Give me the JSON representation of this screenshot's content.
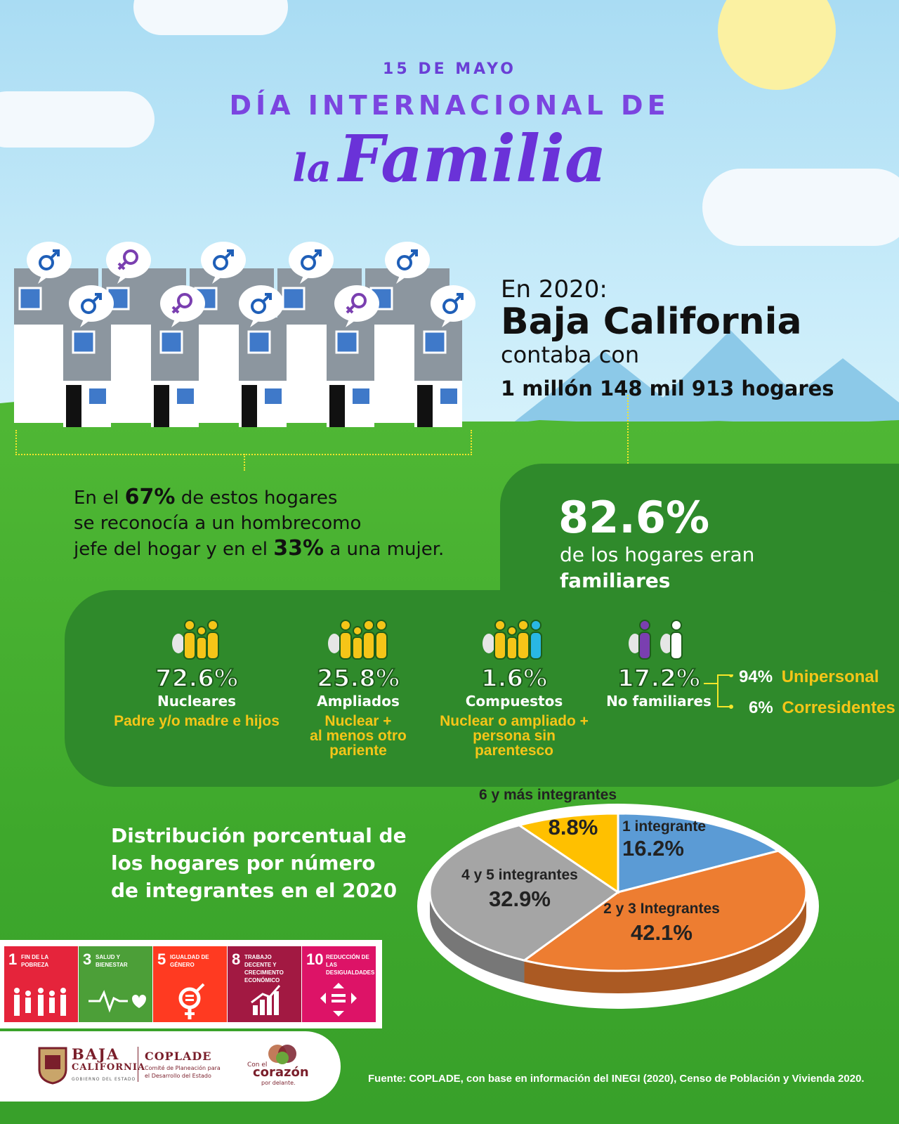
{
  "header": {
    "date": "15 DE MAYO",
    "title_line1": "DÍA INTERNACIONAL DE",
    "title_la": "la",
    "title_familia": "Familia"
  },
  "intro": {
    "year_label": "En 2020:",
    "state": "Baja California",
    "had": "contaba con",
    "households": "1 millón 148 mil 913 hogares"
  },
  "headship": {
    "pre": "En el",
    "men_pct": "67%",
    "mid1": "de estos hogares",
    "line2": "se reconocía a un hombrecomo",
    "line3_pre": "jefe del hogar y en el",
    "women_pct": "33%",
    "line3_post": "a una mujer."
  },
  "family_share": {
    "pct": "82.6%",
    "line1": "de los hogares eran",
    "line2": "familiares"
  },
  "types": [
    {
      "pct": "72.6%",
      "name": "Nucleares",
      "desc": [
        "Padre y/o madre e hijos"
      ]
    },
    {
      "pct": "25.8%",
      "name": "Ampliados",
      "desc": [
        "Nuclear +",
        "al menos otro",
        "pariente"
      ]
    },
    {
      "pct": "1.6%",
      "name": "Compuestos",
      "desc": [
        "Nuclear o ampliado +",
        "persona sin",
        "parentesco"
      ]
    },
    {
      "pct": "17.2%",
      "name": "No familiares",
      "desc": []
    }
  ],
  "non_family_breakdown": [
    {
      "pct": "94%",
      "label": "Unipersonal"
    },
    {
      "pct": "6%",
      "label": "Corresidentes"
    }
  ],
  "distribution_title": [
    "Distribución porcentual de",
    "los hogares por número",
    "de integrantes en el 2020"
  ],
  "chart_data": {
    "type": "pie",
    "title": "Distribución porcentual de los hogares por número de integrantes en el 2020",
    "categories": [
      "1 integrante",
      "2 y 3 Integrantes",
      "4 y 5 integrantes",
      "6 y más integrantes"
    ],
    "values": [
      16.2,
      42.1,
      32.9,
      8.8
    ],
    "value_labels": [
      "16.2%",
      "42.1%",
      "32.9%",
      "8.8%"
    ],
    "colors": [
      "#5b9bd5",
      "#ed7d31",
      "#a5a5a5",
      "#ffc000"
    ],
    "style": "3d-tilted"
  },
  "sdgs": [
    {
      "num": "1",
      "label": "Fin de la pobreza",
      "color": "#e5243b",
      "icon": "family-icon"
    },
    {
      "num": "3",
      "label": "Salud y bienestar",
      "color": "#4c9f38",
      "icon": "heartbeat-icon"
    },
    {
      "num": "5",
      "label": "Igualdad de género",
      "color": "#ff3a21",
      "icon": "gender-equality-icon"
    },
    {
      "num": "8",
      "label": "Trabajo decente y crecimiento económico",
      "color": "#a21942",
      "icon": "growth-chart-icon"
    },
    {
      "num": "10",
      "label": "Reducción de las desigualdades",
      "color": "#dd1367",
      "icon": "equality-arrows-icon"
    }
  ],
  "logos": {
    "bc_name1": "BAJA",
    "bc_name2": "CALIFORNIA",
    "bc_sub": "GOBIERNO DEL ESTADO",
    "coplade": "COPLADE",
    "coplade_sub1": "Comité de Planeación para",
    "coplade_sub2": "el Desarrollo del Estado",
    "cc_1": "Con el",
    "cc_2": "corazón",
    "cc_3": "por delante."
  },
  "source": "Fuente: COPLADE, con base en información del INEGI (2020), Censo de Población y Vivienda 2020.",
  "colors": {
    "purple": "#6a32d8",
    "panel_green": "#2f8a2b",
    "yellow": "#f5c518"
  }
}
